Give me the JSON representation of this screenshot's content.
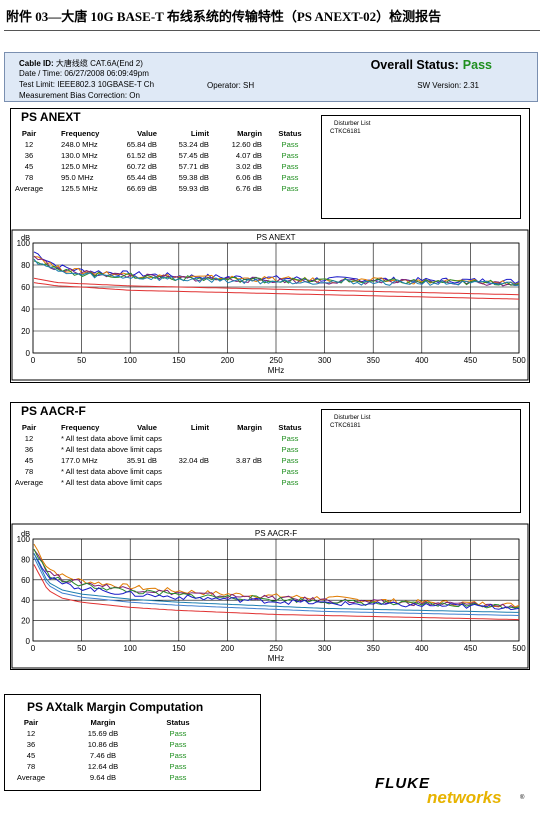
{
  "doc_title": "附件 03—大唐 10G BASE-T 布线系统的传输特性（PS ANEXT-02）检测报告",
  "header": {
    "cable_id_label": "Cable ID:",
    "cable_id": "大唐线缆 CAT.6A(End 2)",
    "date_time": "Date / Time: 06/27/2008 06:09:49pm",
    "test_limit": "Test Limit: IEEE802.3 10GBASE-T Ch",
    "operator": "Operator: SH",
    "bias": "Measurement Bias Correction: On",
    "overall_label": "Overall Status:",
    "overall_value": "Pass",
    "sw_version": "SW Version: 2.31"
  },
  "anext": {
    "title": "PS ANEXT",
    "columns": [
      "Pair",
      "Frequency",
      "Value",
      "Limit",
      "Margin",
      "Status"
    ],
    "rows": [
      [
        "12",
        "248.0 MHz",
        "65.84 dB",
        "53.24 dB",
        "12.60 dB",
        "Pass"
      ],
      [
        "36",
        "130.0 MHz",
        "61.52 dB",
        "57.45 dB",
        "4.07 dB",
        "Pass"
      ],
      [
        "45",
        "125.0 MHz",
        "60.72 dB",
        "57.71 dB",
        "3.02 dB",
        "Pass"
      ],
      [
        "78",
        "95.0 MHz",
        "65.44 dB",
        "59.38 dB",
        "6.06 dB",
        "Pass"
      ],
      [
        "Average",
        "125.5 MHz",
        "66.69 dB",
        "59.93 dB",
        "6.76 dB",
        "Pass"
      ]
    ],
    "disturber_title": "Disturber List",
    "disturber_item": "CTKC6181"
  },
  "aacr": {
    "title": "PS AACR-F",
    "columns": [
      "Pair",
      "Frequency",
      "Value",
      "Limit",
      "Margin",
      "Status"
    ],
    "rows": [
      [
        "12",
        "* All test data above limit caps",
        "",
        "",
        "",
        "Pass"
      ],
      [
        "36",
        "* All test data above limit caps",
        "",
        "",
        "",
        "Pass"
      ],
      [
        "45",
        "177.0 MHz",
        "35.91 dB",
        "32.04 dB",
        "3.87 dB",
        "Pass"
      ],
      [
        "78",
        "* All test data above limit caps",
        "",
        "",
        "",
        "Pass"
      ],
      [
        "Average",
        "* All test data above limit caps",
        "",
        "",
        "",
        "Pass"
      ]
    ],
    "disturber_title": "Disturber List",
    "disturber_item": "CTKC6181"
  },
  "axtalk": {
    "title": "PS AXtalk Margin Computation",
    "columns": [
      "Pair",
      "Margin",
      "Status"
    ],
    "rows": [
      [
        "12",
        "15.69 dB",
        "Pass"
      ],
      [
        "36",
        "10.86 dB",
        "Pass"
      ],
      [
        "45",
        "7.46 dB",
        "Pass"
      ],
      [
        "78",
        "12.64 dB",
        "Pass"
      ],
      [
        "Average",
        "9.64 dB",
        "Pass"
      ]
    ]
  },
  "logo": {
    "fluke": "FLUKE",
    "networks": "networks",
    "tm": "®"
  },
  "chart_data": [
    {
      "type": "line",
      "title": "PS ANEXT",
      "xlabel": "MHz",
      "ylabel": "dB",
      "xlim": [
        0,
        500
      ],
      "ylim": [
        0,
        100
      ],
      "xticks": [
        0,
        50,
        100,
        150,
        200,
        250,
        300,
        350,
        400,
        450,
        500
      ],
      "yticks": [
        0,
        20,
        40,
        60,
        80,
        100
      ],
      "grid": true,
      "x": [
        1,
        25,
        50,
        100,
        150,
        200,
        250,
        300,
        350,
        400,
        450,
        500
      ],
      "series": [
        {
          "values": [
            92,
            79,
            75,
            72,
            70,
            69,
            68,
            67,
            67,
            66,
            66,
            65
          ],
          "color": "#1a1ac8"
        },
        {
          "values": [
            90,
            77,
            74,
            71,
            69,
            68,
            67,
            66,
            66,
            65,
            65,
            64
          ],
          "color": "#e07b00"
        },
        {
          "values": [
            88,
            76,
            73,
            70,
            68,
            67,
            66,
            65,
            65,
            64,
            64,
            63
          ],
          "color": "#7a1e7a"
        },
        {
          "values": [
            86,
            75,
            72,
            70,
            68,
            67,
            66,
            66,
            65,
            65,
            64,
            64
          ],
          "color": "#2a8a2a"
        },
        {
          "values": [
            85,
            74,
            71,
            69,
            67,
            66,
            65,
            65,
            64,
            64,
            63,
            63
          ],
          "color": "#1e7fb0"
        },
        {
          "values": [
            68,
            64,
            63,
            61,
            60,
            59,
            58,
            57,
            56,
            55,
            54,
            53
          ],
          "color": "#e03030",
          "smooth": true
        },
        {
          "values": [
            64,
            61,
            60,
            57,
            56,
            55,
            54,
            53,
            52,
            51,
            50,
            49
          ],
          "color": "#e03030",
          "smooth": true
        }
      ]
    },
    {
      "type": "line",
      "title": "PS AACR-F",
      "xlabel": "MHz",
      "ylabel": "dB",
      "xlim": [
        0,
        500
      ],
      "ylim": [
        0,
        100
      ],
      "xticks": [
        0,
        50,
        100,
        150,
        200,
        250,
        300,
        350,
        400,
        450,
        500
      ],
      "yticks": [
        0,
        20,
        40,
        60,
        80,
        100
      ],
      "grid": true,
      "x": [
        1,
        15,
        30,
        50,
        100,
        150,
        200,
        250,
        300,
        350,
        400,
        450,
        500
      ],
      "series": [
        {
          "values": [
            95,
            72,
            64,
            59,
            53,
            49,
            46,
            44,
            42,
            40,
            38,
            37,
            35
          ],
          "color": "#e07b00"
        },
        {
          "values": [
            92,
            68,
            61,
            57,
            51,
            47,
            44,
            42,
            40,
            38,
            37,
            36,
            34
          ],
          "color": "#7a1e7a"
        },
        {
          "values": [
            90,
            66,
            59,
            55,
            49,
            45,
            43,
            41,
            39,
            37,
            36,
            35,
            34
          ],
          "color": "#2a8a2a"
        },
        {
          "values": [
            88,
            63,
            56,
            52,
            46,
            43,
            41,
            39,
            37,
            36,
            35,
            34,
            33
          ],
          "color": "#1a1ac8"
        },
        {
          "values": [
            86,
            58,
            50,
            46,
            41,
            38,
            36,
            34,
            32,
            31,
            30,
            29,
            28
          ],
          "color": "#1e7fb0",
          "smooth": true
        },
        {
          "values": [
            82,
            55,
            47,
            43,
            38,
            35,
            33,
            31,
            29,
            28,
            27,
            26,
            25
          ],
          "color": "#3f7fcf",
          "smooth": true
        },
        {
          "values": [
            75,
            50,
            42,
            38,
            33,
            30,
            28,
            26,
            25,
            24,
            23,
            22,
            21
          ],
          "color": "#e03030",
          "smooth": true
        }
      ]
    }
  ]
}
